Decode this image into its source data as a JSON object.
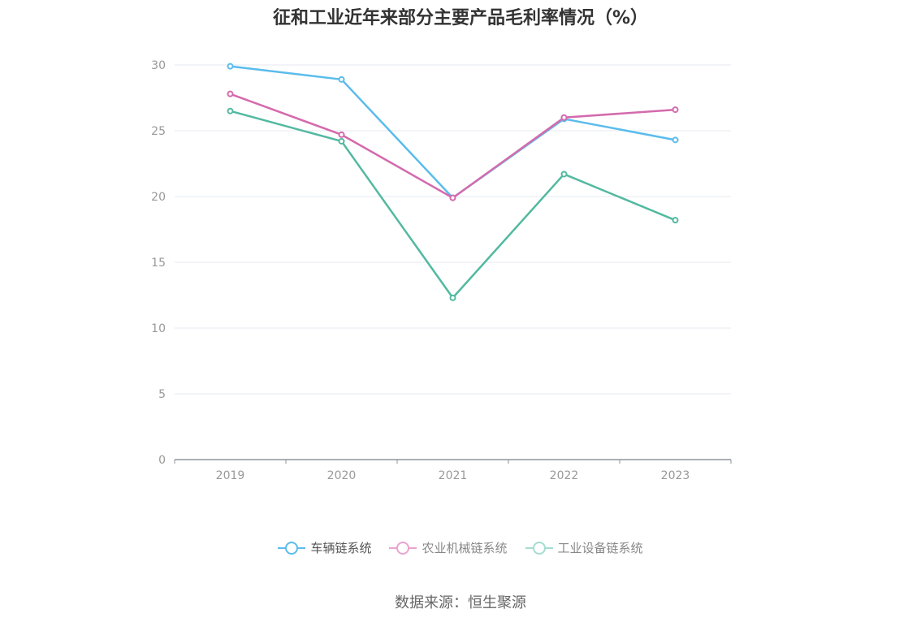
{
  "chart_data": {
    "type": "line",
    "title": "征和工业近年来部分主要产品毛利率情况（%）",
    "categories": [
      "2019",
      "2020",
      "2021",
      "2022",
      "2023"
    ],
    "series": [
      {
        "name": "车辆链系统",
        "color": "#5bbcec",
        "values": [
          29.9,
          28.9,
          19.9,
          25.9,
          24.3
        ]
      },
      {
        "name": "农业机械链系统",
        "color": "#d46aad",
        "values": [
          27.8,
          24.7,
          19.9,
          26.0,
          26.6
        ]
      },
      {
        "name": "工业设备链系统",
        "color": "#52b9a0",
        "values": [
          26.5,
          24.2,
          12.3,
          21.7,
          18.2
        ]
      }
    ],
    "ylim": [
      0,
      30
    ],
    "yticks": [
      "0",
      "5",
      "10",
      "15",
      "20",
      "25",
      "30"
    ],
    "grid": true,
    "legend_position": "bottom",
    "source": "数据来源：恒生聚源"
  }
}
